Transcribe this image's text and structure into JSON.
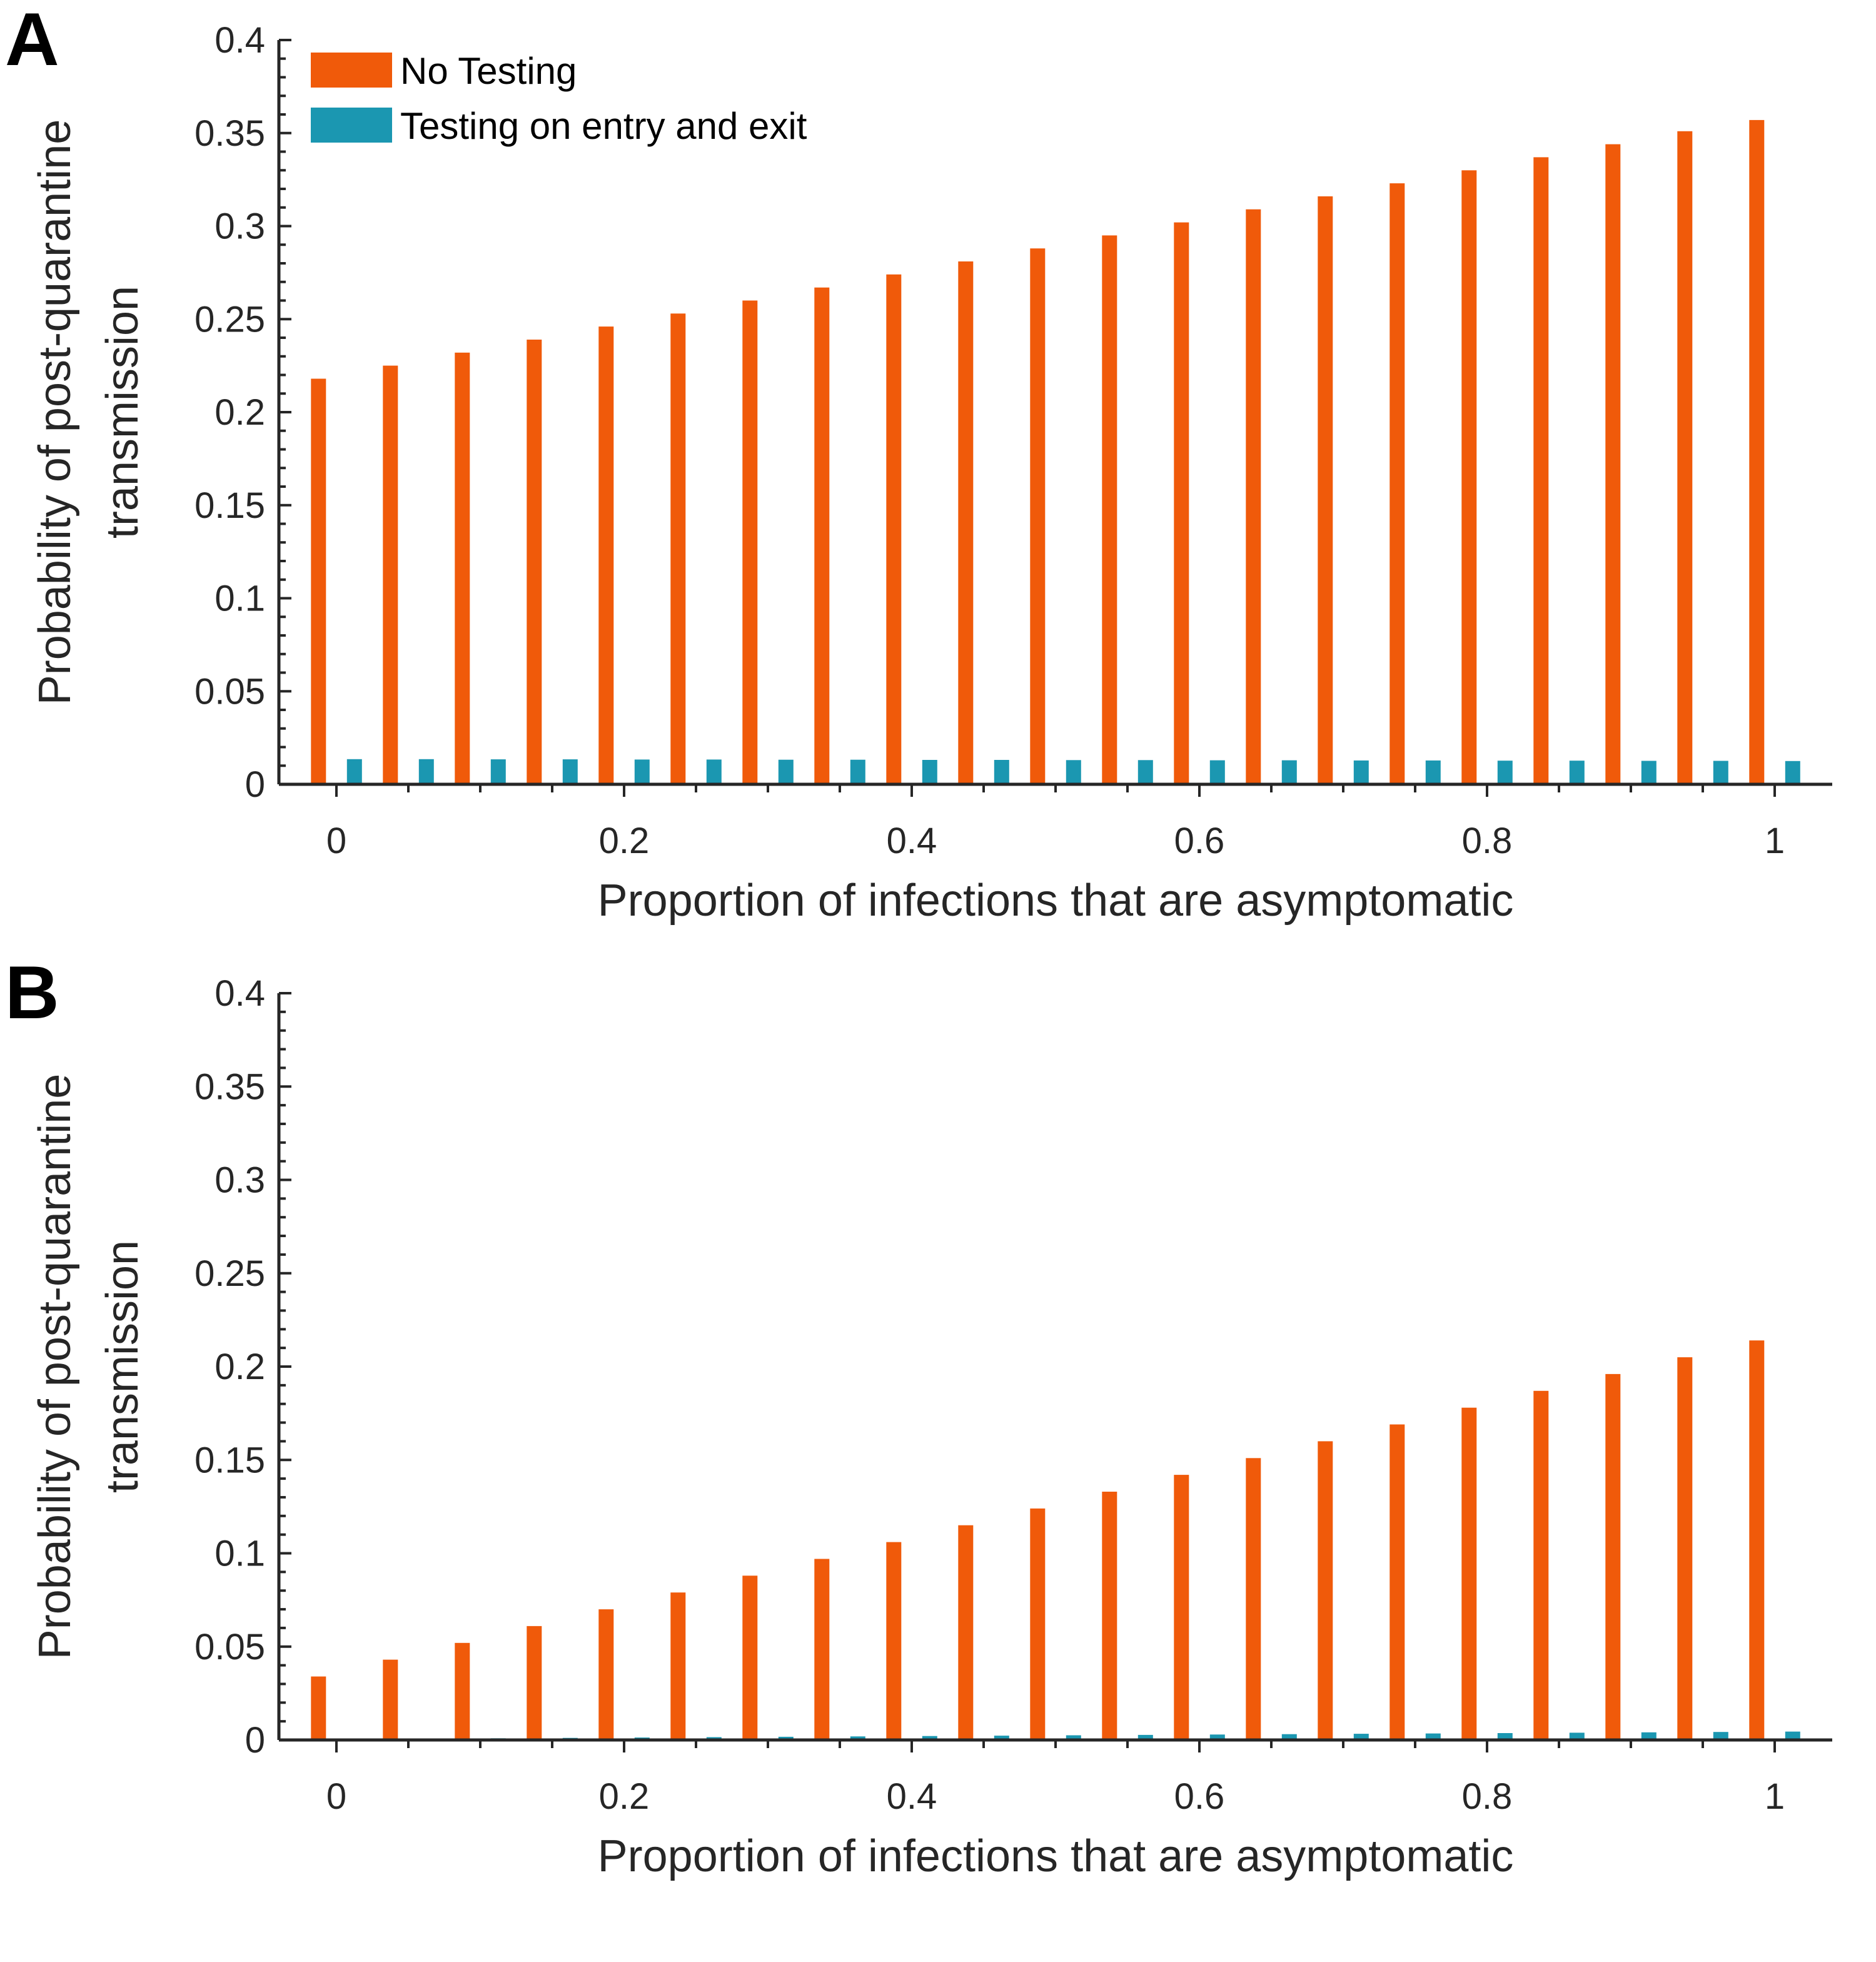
{
  "legend": [
    {
      "label": "No Testing",
      "color": "#F05A0A"
    },
    {
      "label": "Testing on entry and exit",
      "color": "#1B97B1"
    }
  ],
  "chart_data": [
    {
      "panel": "A",
      "type": "bar",
      "xlabel": "Proportion of infections that are asymptomatic",
      "ylabel": [
        "Probability of post-quarantine",
        "transmission"
      ],
      "x": [
        0,
        0.05,
        0.1,
        0.15,
        0.2,
        0.25,
        0.3,
        0.35,
        0.4,
        0.45,
        0.5,
        0.55,
        0.6,
        0.65,
        0.7,
        0.75,
        0.8,
        0.85,
        0.9,
        0.95,
        1
      ],
      "xticks": [
        "0",
        "0.2",
        "0.4",
        "0.6",
        "0.8",
        "1"
      ],
      "xlim": [
        -0.04,
        1.04
      ],
      "ylim": [
        0,
        0.4
      ],
      "yticks": [
        "0",
        "0.05",
        "0.1",
        "0.15",
        "0.2",
        "0.25",
        "0.3",
        "0.35",
        "0.4"
      ],
      "grid": false,
      "legend_position": "top-left",
      "series": [
        {
          "name": "No Testing",
          "color": "#F05A0A",
          "values": [
            0.218,
            0.225,
            0.232,
            0.239,
            0.246,
            0.253,
            0.26,
            0.267,
            0.274,
            0.281,
            0.288,
            0.295,
            0.302,
            0.309,
            0.316,
            0.323,
            0.33,
            0.337,
            0.344,
            0.351,
            0.357
          ]
        },
        {
          "name": "Testing on entry and exit",
          "color": "#1B97B1",
          "values": [
            0.0135,
            0.0135,
            0.0134,
            0.0134,
            0.0133,
            0.0133,
            0.0132,
            0.0132,
            0.0131,
            0.0131,
            0.013,
            0.013,
            0.0129,
            0.0129,
            0.0128,
            0.0128,
            0.0127,
            0.0127,
            0.0126,
            0.0126,
            0.0125
          ]
        }
      ]
    },
    {
      "panel": "B",
      "type": "bar",
      "xlabel": "Proportion of infections that are asymptomatic",
      "ylabel": [
        "Probability of post-quarantine",
        "transmission"
      ],
      "x": [
        0,
        0.05,
        0.1,
        0.15,
        0.2,
        0.25,
        0.3,
        0.35,
        0.4,
        0.45,
        0.5,
        0.55,
        0.6,
        0.65,
        0.7,
        0.75,
        0.8,
        0.85,
        0.9,
        0.95,
        1
      ],
      "xticks": [
        "0",
        "0.2",
        "0.4",
        "0.6",
        "0.8",
        "1"
      ],
      "xlim": [
        -0.04,
        1.04
      ],
      "ylim": [
        0,
        0.4
      ],
      "yticks": [
        "0",
        "0.05",
        "0.1",
        "0.15",
        "0.2",
        "0.25",
        "0.3",
        "0.35",
        "0.4"
      ],
      "grid": false,
      "series": [
        {
          "name": "No Testing",
          "color": "#F05A0A",
          "values": [
            0.034,
            0.043,
            0.052,
            0.061,
            0.07,
            0.079,
            0.088,
            0.097,
            0.106,
            0.115,
            0.124,
            0.133,
            0.142,
            0.151,
            0.16,
            0.169,
            0.178,
            0.187,
            0.196,
            0.205,
            0.214
          ]
        },
        {
          "name": "Testing on entry and exit",
          "color": "#1B97B1",
          "values": [
            0.0005,
            0.0007,
            0.0009,
            0.0011,
            0.0013,
            0.0015,
            0.0017,
            0.0019,
            0.0021,
            0.0023,
            0.0025,
            0.0027,
            0.0029,
            0.0031,
            0.0033,
            0.0035,
            0.0037,
            0.0039,
            0.0041,
            0.0043,
            0.0045
          ]
        }
      ]
    }
  ]
}
